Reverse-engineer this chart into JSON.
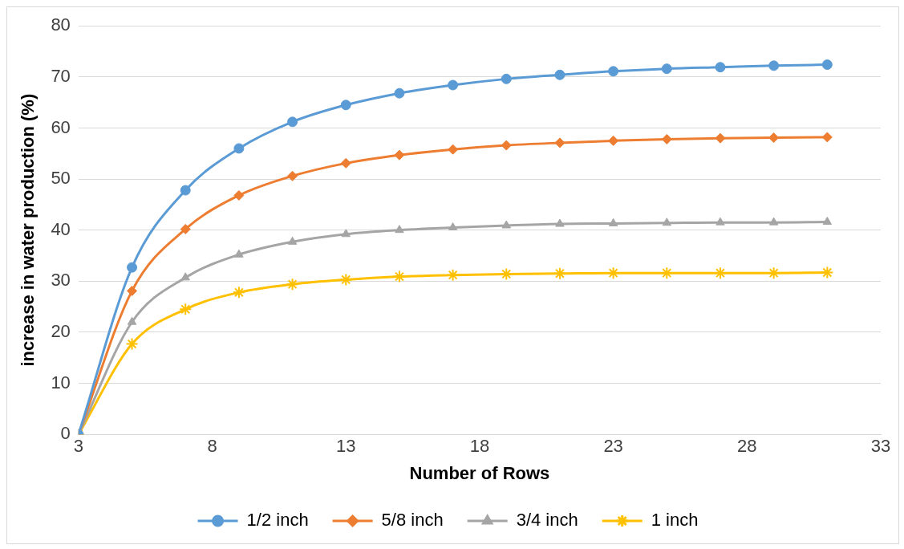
{
  "chart_data": {
    "type": "line",
    "xlabel": "Number of Rows",
    "ylabel": "increase in water production (%)",
    "x": [
      3,
      5,
      7,
      9,
      11,
      13,
      15,
      17,
      19,
      21,
      23,
      25,
      27,
      29,
      31
    ],
    "series": [
      {
        "name": "1/2 inch",
        "color": "#5b9bd5",
        "marker": "circle",
        "values": [
          0,
          32.7,
          47.8,
          56,
          61.2,
          64.5,
          66.8,
          68.4,
          69.6,
          70.4,
          71.1,
          71.6,
          71.9,
          72.2,
          72.4
        ]
      },
      {
        "name": "5/8 inch",
        "color": "#ed7d31",
        "marker": "diamond",
        "values": [
          0,
          28.1,
          40.2,
          46.8,
          50.6,
          53.1,
          54.7,
          55.8,
          56.6,
          57.1,
          57.5,
          57.8,
          58,
          58.1,
          58.2
        ]
      },
      {
        "name": "3/4 inch",
        "color": "#a5a5a5",
        "marker": "triangle",
        "values": [
          0,
          22,
          30.7,
          35.2,
          37.7,
          39.2,
          40,
          40.5,
          40.9,
          41.2,
          41.3,
          41.4,
          41.5,
          41.5,
          41.6
        ]
      },
      {
        "name": "1 inch",
        "color": "#ffc000",
        "marker": "cross",
        "values": [
          0,
          17.7,
          24.5,
          27.8,
          29.4,
          30.3,
          30.9,
          31.2,
          31.4,
          31.5,
          31.6,
          31.6,
          31.6,
          31.6,
          31.7
        ]
      }
    ],
    "xlim": [
      3,
      33
    ],
    "xticks": [
      3,
      8,
      13,
      18,
      23,
      28,
      33
    ],
    "ylim": [
      0,
      80
    ],
    "yticks": [
      0,
      10,
      20,
      30,
      40,
      50,
      60,
      70,
      80
    ],
    "grid": "y",
    "legend": "bottom",
    "line_style": "solid"
  }
}
